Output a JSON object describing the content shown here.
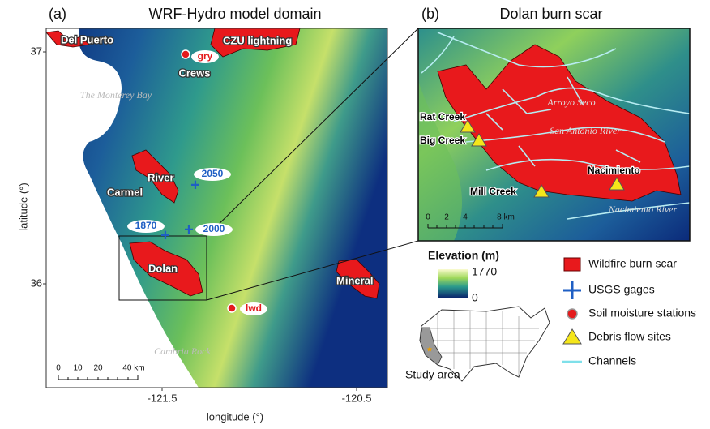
{
  "panel_a": {
    "label": "(a)",
    "title": "WRF-Hydro model domain",
    "ylabel": "latitude (°)",
    "xlabel": "longitude (°)",
    "yticks": [
      "37",
      "36"
    ],
    "xticks": [
      "-121.5",
      "-120.5"
    ],
    "places": {
      "del_puerto": "Del Puerto",
      "czu": "CZU lightning",
      "gry": "gry",
      "crews": "Crews",
      "bay": "The Monterey Bay",
      "river": "River",
      "carmel": "Carmel",
      "g2050": "2050",
      "g1870": "1870",
      "g2000": "2000",
      "dolan": "Dolan",
      "mineral": "Mineral",
      "lwd": "lwd",
      "cambria": "Cambria Rock"
    },
    "scalebar": [
      "0",
      "10",
      "20",
      "40 km"
    ]
  },
  "panel_b": {
    "label": "(b)",
    "title": "Dolan burn scar",
    "places": {
      "arroyo": "Arroyo Seco",
      "san_antonio": "San Antonio River",
      "nacimiento_river": "Nacimiento River",
      "rat": "Rat Creek",
      "big": "Big Creek",
      "mill": "Mill Creek",
      "nacimiento": "Nacimiento"
    },
    "scalebar": [
      "0",
      "2",
      "4",
      "8 km"
    ]
  },
  "legend": {
    "elevation_title": "Elevation (m)",
    "elevation_max": "1770",
    "elevation_min": "0",
    "items": [
      "Wildfire burn scar",
      "USGS gages",
      "Soil moisture stations",
      "Debris flow sites",
      "Channels"
    ],
    "inset": "Study area"
  }
}
